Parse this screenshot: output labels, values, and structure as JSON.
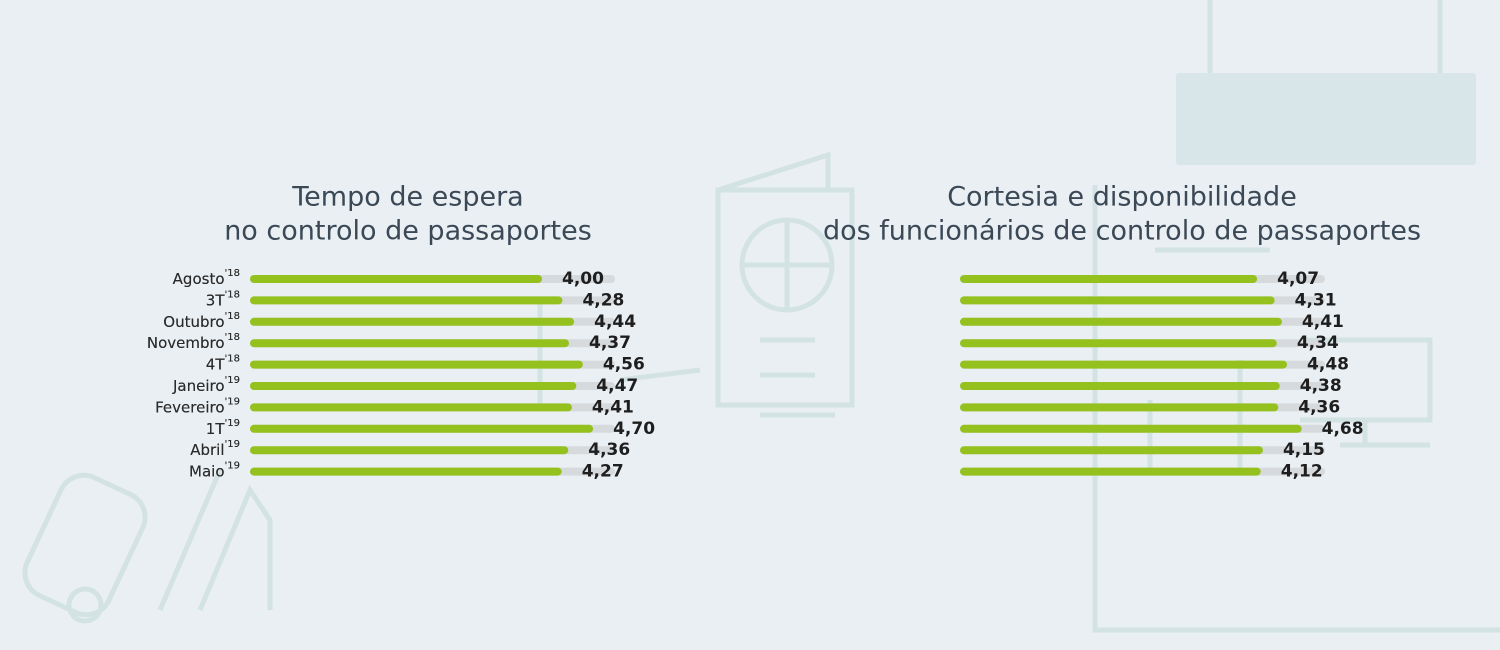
{
  "chart_data": [
    {
      "type": "hbar",
      "title": [
        "Tempo de espera",
        "no controlo de passaportes"
      ],
      "categories": [
        "Agosto",
        "3T",
        "Outubro",
        "Novembro",
        "4T",
        "Janeiro",
        "Fevereiro",
        "1T",
        "Abril",
        "Maio"
      ],
      "category_years": [
        "'18",
        "'18",
        "'18",
        "'18",
        "'18",
        "'19",
        "'19",
        "'19",
        "'19",
        "'19"
      ],
      "values": [
        4.0,
        4.28,
        4.44,
        4.37,
        4.56,
        4.47,
        4.41,
        4.7,
        4.36,
        4.27
      ],
      "value_labels": [
        "4,00",
        "4,28",
        "4,44",
        "4,37",
        "4,56",
        "4,47",
        "4,41",
        "4,70",
        "4,36",
        "4,27"
      ],
      "xlim": [
        0,
        5
      ],
      "color": "#95c11f",
      "track_color": "#d6dadd"
    },
    {
      "type": "hbar",
      "title": [
        "Cortesia e disponibilidade",
        "dos funcionários de controlo de passaportes"
      ],
      "categories": [
        "Agosto",
        "3T",
        "Outubro",
        "Novembro",
        "4T",
        "Janeiro",
        "Fevereiro",
        "1T",
        "Abril",
        "Maio"
      ],
      "category_years": [
        "'18",
        "'18",
        "'18",
        "'18",
        "'18",
        "'19",
        "'19",
        "'19",
        "'19",
        "'19"
      ],
      "values": [
        4.07,
        4.31,
        4.41,
        4.34,
        4.48,
        4.38,
        4.36,
        4.68,
        4.15,
        4.12
      ],
      "value_labels": [
        "4,07",
        "4,31",
        "4,41",
        "4,34",
        "4,48",
        "4,38",
        "4,36",
        "4,68",
        "4,15",
        "4,12"
      ],
      "xlim": [
        0,
        5
      ],
      "color": "#95c11f",
      "track_color": "#d6dadd"
    }
  ]
}
